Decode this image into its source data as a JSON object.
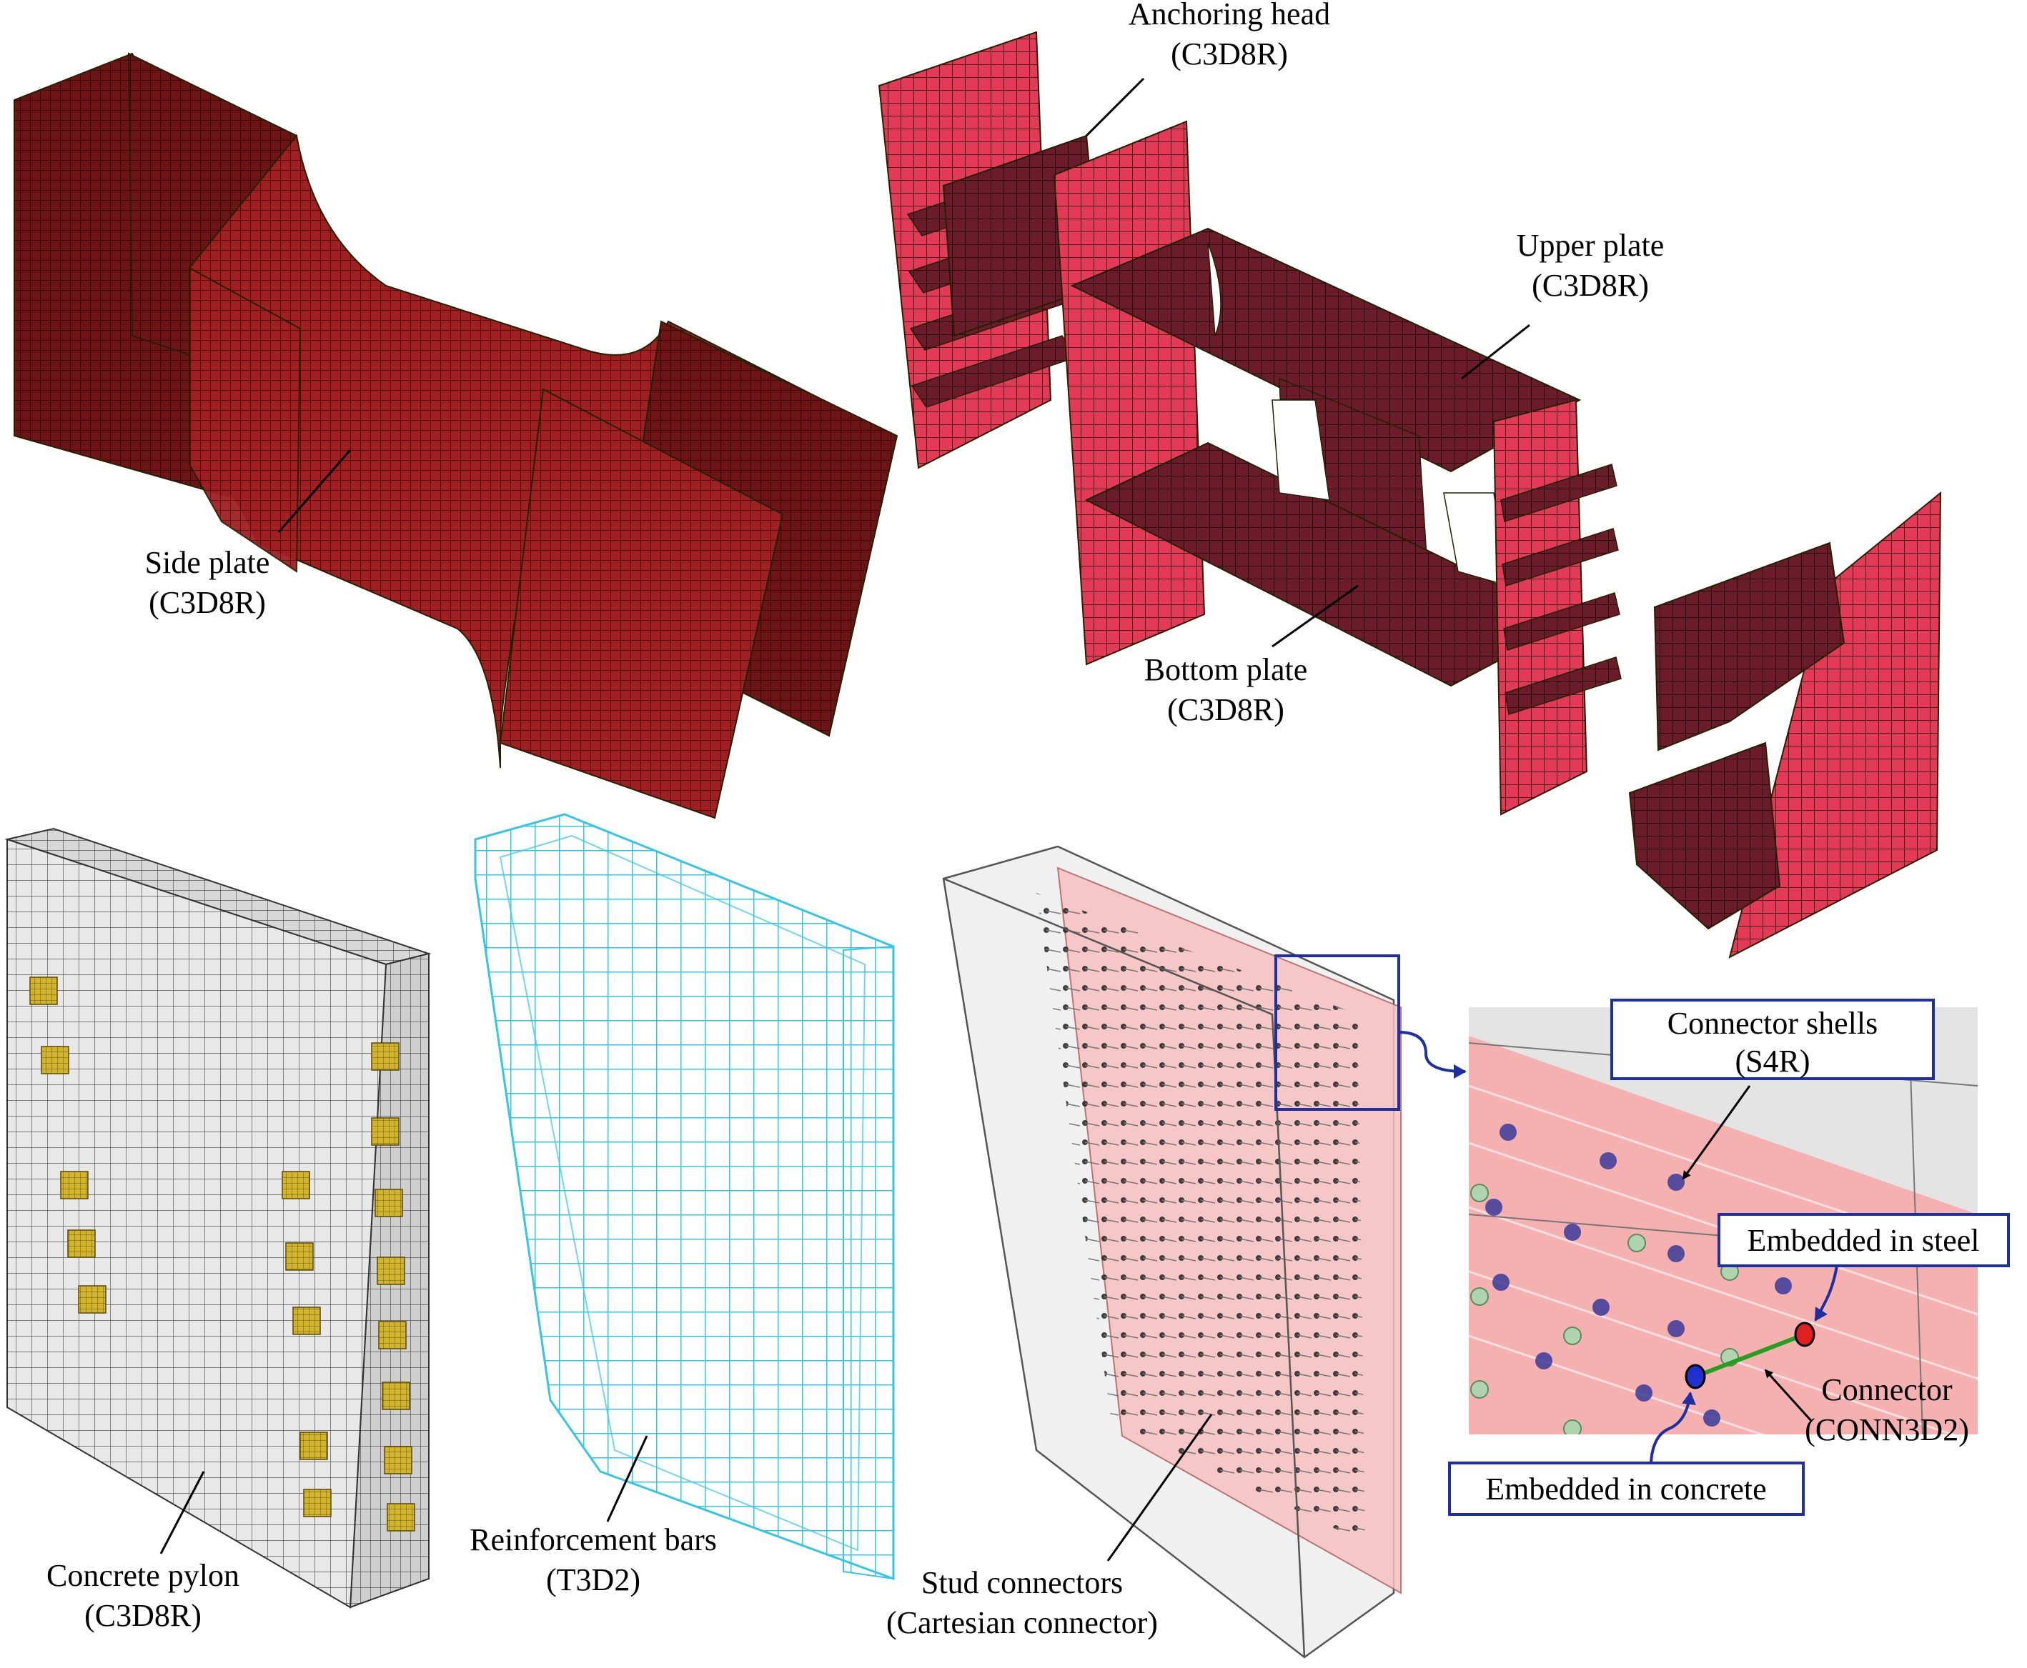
{
  "labels": {
    "side_plate": {
      "name": "Side plate",
      "element": "(C3D8R)"
    },
    "anchoring_head": {
      "name": "Anchoring head",
      "element": "(C3D8R)"
    },
    "upper_plate": {
      "name": "Upper plate",
      "element": "(C3D8R)"
    },
    "bottom_plate": {
      "name": "Bottom plate",
      "element": "(C3D8R)"
    },
    "concrete_pylon": {
      "name": "Concrete pylon",
      "element": "(C3D8R)"
    },
    "reinforcement_bars": {
      "name": "Reinforcement bars",
      "element": "(T3D2)"
    },
    "stud_connectors": {
      "name": "Stud connectors",
      "element": "(Cartesian connector)"
    },
    "connector_shells": {
      "name": "Connector shells",
      "element": "(S4R)"
    },
    "embedded_steel": {
      "name": "Embedded in steel"
    },
    "connector": {
      "name": "Connector",
      "element": "(CONN3D2)"
    },
    "embedded_concrete": {
      "name": "Embedded in concrete"
    }
  },
  "colors": {
    "side_plate": "#8c1d1d",
    "anchor_parts": "#d9344f",
    "anchor_dark": "#5a1a24",
    "concrete": "#e6e6e6",
    "studs_mesh": "#999999",
    "rebar": "#35c6e6",
    "bearing_pads": "#c9a92a",
    "callout_box": "#1f2fa0",
    "connector_line": "#23a020",
    "node_steel": "#e02020",
    "node_concrete": "#1f2fd0",
    "shell_pink": "#f6b8b8"
  }
}
